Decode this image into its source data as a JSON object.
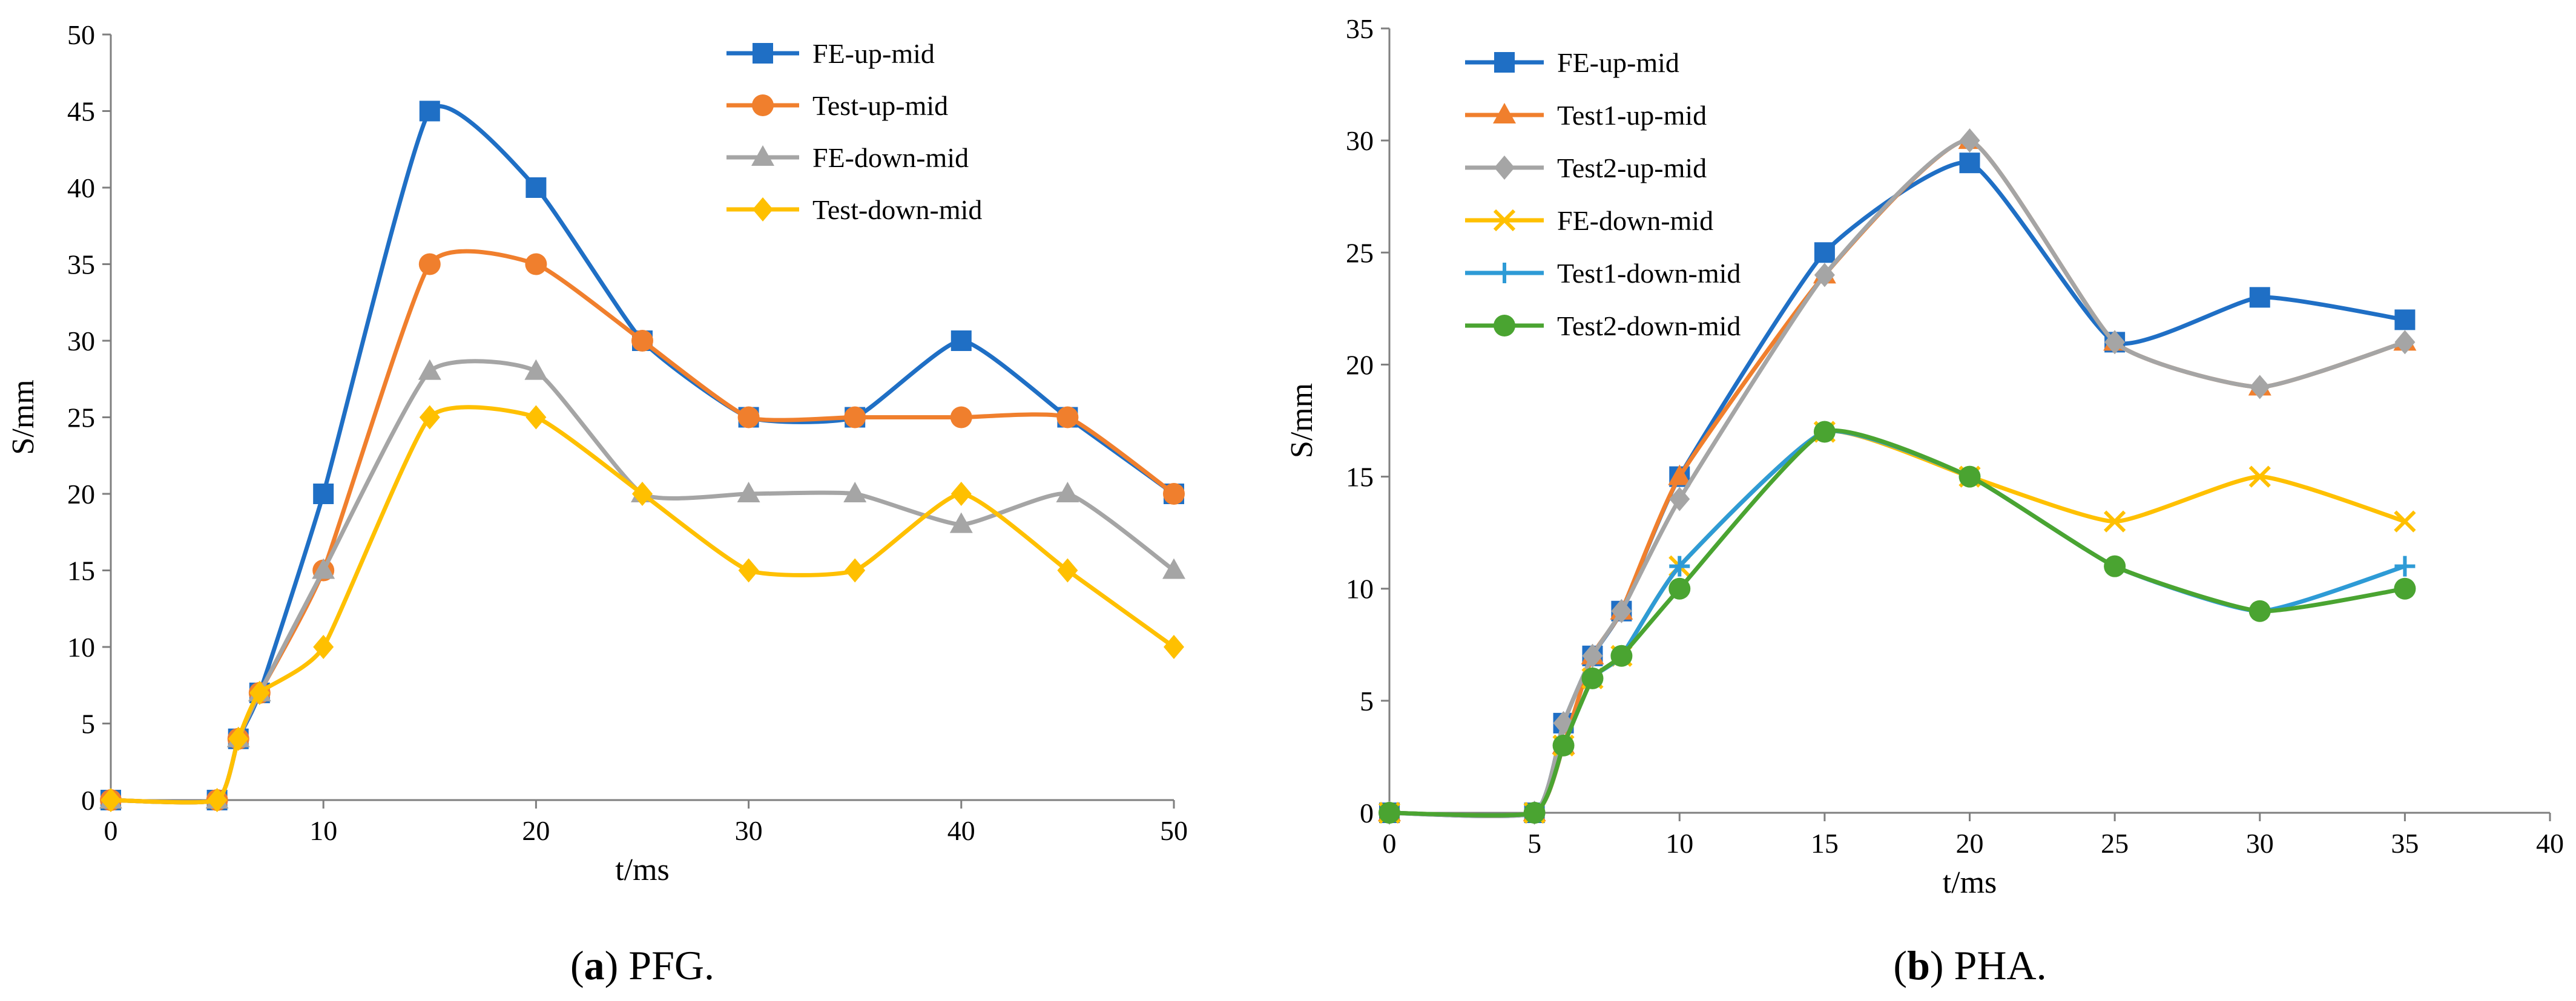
{
  "chart_data": [
    {
      "type": "line",
      "caption": {
        "letter": "a",
        "text": " PFG."
      },
      "xlabel": "t/ms",
      "ylabel": "S/mm",
      "xlim": [
        0,
        50
      ],
      "ylim": [
        0,
        50
      ],
      "xticks": [
        0,
        10,
        20,
        30,
        40,
        50
      ],
      "yticks": [
        0,
        5,
        10,
        15,
        20,
        25,
        30,
        35,
        40,
        45,
        50
      ],
      "legend_position": "top-right",
      "grid": false,
      "series": [
        {
          "name": "FE-up-mid",
          "color": "#1f6fc5",
          "marker": "square",
          "x": [
            0,
            5,
            6,
            7,
            10,
            15,
            20,
            25,
            30,
            35,
            40,
            45,
            50
          ],
          "y": [
            0,
            0,
            4,
            7,
            20,
            45,
            40,
            30,
            25,
            25,
            30,
            25,
            20
          ]
        },
        {
          "name": "Test-up-mid",
          "color": "#f07f2d",
          "marker": "circle",
          "x": [
            0,
            5,
            6,
            7,
            10,
            15,
            20,
            25,
            30,
            35,
            40,
            45,
            50
          ],
          "y": [
            0,
            0,
            4,
            7,
            15,
            35,
            35,
            30,
            25,
            25,
            25,
            25,
            20
          ]
        },
        {
          "name": "FE-down-mid",
          "color": "#a5a5a5",
          "marker": "triangle",
          "x": [
            0,
            5,
            6,
            7,
            10,
            15,
            20,
            25,
            30,
            35,
            40,
            45,
            50
          ],
          "y": [
            0,
            0,
            4,
            7,
            15,
            28,
            28,
            20,
            20,
            20,
            18,
            20,
            15
          ]
        },
        {
          "name": "Test-down-mid",
          "color": "#ffc000",
          "marker": "diamond",
          "x": [
            0,
            5,
            6,
            7,
            10,
            15,
            20,
            25,
            30,
            35,
            40,
            45,
            50
          ],
          "y": [
            0,
            0,
            4,
            7,
            10,
            25,
            25,
            20,
            15,
            15,
            20,
            15,
            10
          ]
        }
      ]
    },
    {
      "type": "line",
      "caption": {
        "letter": "b",
        "text": " PHA."
      },
      "xlabel": "t/ms",
      "ylabel": "S/mm",
      "xlim": [
        0,
        40
      ],
      "ylim": [
        0,
        35
      ],
      "xticks": [
        0,
        5,
        10,
        15,
        20,
        25,
        30,
        35,
        40
      ],
      "yticks": [
        0,
        5,
        10,
        15,
        20,
        25,
        30,
        35
      ],
      "legend_position": "top-left",
      "grid": false,
      "series": [
        {
          "name": "FE-up-mid",
          "color": "#1f6fc5",
          "marker": "square",
          "x": [
            0,
            5,
            6,
            7,
            8,
            10,
            15,
            20,
            25,
            30,
            35
          ],
          "y": [
            0,
            0,
            4,
            7,
            9,
            15,
            25,
            29,
            21,
            23,
            22
          ]
        },
        {
          "name": "Test1-up-mid",
          "color": "#f07f2d",
          "marker": "triangle",
          "x": [
            0,
            5,
            6,
            7,
            8,
            10,
            15,
            20,
            25,
            30,
            35
          ],
          "y": [
            0,
            0,
            3,
            7,
            9,
            15,
            24,
            30,
            21,
            19,
            21
          ]
        },
        {
          "name": "Test2-up-mid",
          "color": "#a5a5a5",
          "marker": "diamond",
          "x": [
            0,
            5,
            6,
            7,
            8,
            10,
            15,
            20,
            25,
            30,
            35
          ],
          "y": [
            0,
            0,
            4,
            7,
            9,
            14,
            24,
            30,
            21,
            19,
            21
          ]
        },
        {
          "name": "FE-down-mid",
          "color": "#ffc000",
          "marker": "x",
          "x": [
            0,
            5,
            6,
            7,
            8,
            10,
            15,
            20,
            25,
            30,
            35
          ],
          "y": [
            0,
            0,
            3,
            6,
            7,
            11,
            17,
            15,
            13,
            15,
            13
          ]
        },
        {
          "name": "Test1-down-mid",
          "color": "#2e9bd6",
          "marker": "plus",
          "x": [
            0,
            5,
            6,
            7,
            8,
            10,
            15,
            20,
            25,
            30,
            35
          ],
          "y": [
            0,
            0,
            3,
            6,
            7,
            11,
            17,
            15,
            11,
            9,
            11
          ]
        },
        {
          "name": "Test2-down-mid",
          "color": "#4aa431",
          "marker": "circle",
          "x": [
            0,
            5,
            6,
            7,
            8,
            10,
            15,
            20,
            25,
            30,
            35
          ],
          "y": [
            0,
            0,
            3,
            6,
            7,
            10,
            17,
            15,
            11,
            9,
            10
          ]
        }
      ]
    }
  ]
}
